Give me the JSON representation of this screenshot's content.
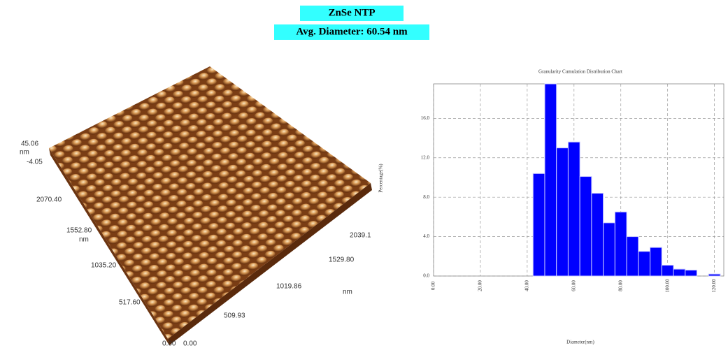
{
  "header": {
    "title": "ZnSe NTP",
    "subtitle": "Avg. Diameter: 60.54 nm"
  },
  "afm_image": {
    "labels": [
      "45.06",
      "nm",
      "-4.05",
      "2070.40",
      "1552.80",
      "nm",
      "1035.20",
      "517.60",
      "0.00",
      "0.00",
      "509.93",
      "1019.86",
      "nm",
      "1529.80",
      "2039.1"
    ]
  },
  "chart_data": {
    "type": "histogram",
    "title": "Granularity Cumulation Distribution Chart",
    "x_label": "Diameter(nm)",
    "y_label": "Percentage(%)",
    "bins": [
      42.5,
      47.5,
      52.5,
      57.5,
      62.5,
      67.5,
      72.5,
      77.5,
      82.5,
      87.5,
      92.5,
      97.5,
      102.5,
      107.5,
      112.5,
      117.5,
      122.5
    ],
    "counts": [
      10.4,
      19.5,
      13.0,
      13.6,
      10.1,
      8.4,
      5.4,
      6.5,
      4.0,
      2.5,
      2.9,
      1.1,
      0.7,
      0.6,
      0,
      0.2
    ],
    "color": "#0000ff",
    "xlim": [
      0,
      124
    ],
    "ylim": [
      0,
      19.5
    ],
    "xticks": [
      {
        "value": 0,
        "label": "0.00"
      },
      {
        "value": 20,
        "label": "20.00"
      },
      {
        "value": 40,
        "label": "40.00"
      },
      {
        "value": 60,
        "label": "60.00"
      },
      {
        "value": 80,
        "label": "80.00"
      },
      {
        "value": 100,
        "label": "100.00"
      },
      {
        "value": 120,
        "label": "120.00"
      }
    ],
    "yticks": [
      {
        "value": 0,
        "label": "0.0"
      },
      {
        "value": 4,
        "label": "4.0"
      },
      {
        "value": 8,
        "label": "8.0"
      },
      {
        "value": 12,
        "label": "12.0"
      },
      {
        "value": 16,
        "label": "16.0"
      }
    ],
    "grid": true
  }
}
